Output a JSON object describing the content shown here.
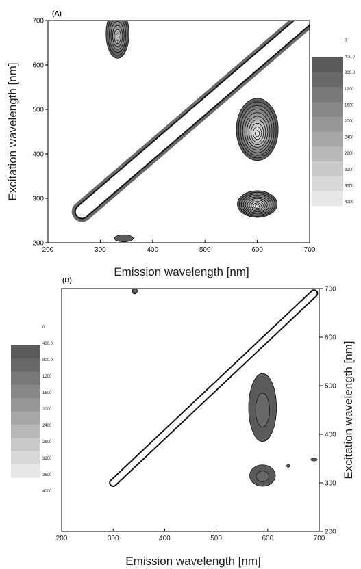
{
  "chart_data": [
    {
      "type": "contour",
      "panel_label": "(A)",
      "xlabel": "Emission wavelength [nm]",
      "ylabel": "Excitation wavelength [nm]",
      "xlim": [
        200,
        700
      ],
      "ylim": [
        200,
        700
      ],
      "xticks": [
        "200",
        "300",
        "400",
        "500",
        "600",
        "700"
      ],
      "yticks": [
        "200",
        "300",
        "400",
        "500",
        "600",
        "700"
      ],
      "ylabel_side": "left",
      "colorbar_side": "right",
      "colorbar_labels": [
        "0",
        "400.0",
        "800.0",
        "1200",
        "1600",
        "2000",
        "2400",
        "2800",
        "3200",
        "3600",
        "4000"
      ],
      "colorbar_colors": [
        "#5a5a5a",
        "#686868",
        "#787878",
        "#878787",
        "#979797",
        "#a7a7a7",
        "#b8b8b8",
        "#c9c9c9",
        "#d9d9d9",
        "#e8e8e8"
      ],
      "features": [
        {
          "name": "scatter-band",
          "from": [
            265,
            270
          ],
          "to": [
            690,
            700
          ],
          "fill_level": 0
        },
        {
          "name": "peak-1",
          "center": [
            600,
            455
          ],
          "rx": 40,
          "ry": 70,
          "levels": 10
        },
        {
          "name": "peak-2",
          "center": [
            600,
            287
          ],
          "rx": 38,
          "ry": 30,
          "levels": 10
        },
        {
          "name": "peak-3",
          "center": [
            333,
            670
          ],
          "rx": 22,
          "ry": 55,
          "levels": 7
        },
        {
          "name": "spot-1",
          "center": [
            345,
            210
          ],
          "rx": 18,
          "ry": 8,
          "levels": 1
        }
      ]
    },
    {
      "type": "contour",
      "panel_label": "(B)",
      "xlabel": "Emission wavelength [nm]",
      "ylabel": "Excitation wavelength [nm]",
      "xlim": [
        200,
        700
      ],
      "ylim": [
        200,
        700
      ],
      "xticks": [
        "200",
        "300",
        "400",
        "500",
        "600",
        "700"
      ],
      "yticks": [
        "200",
        "300",
        "400",
        "500",
        "600",
        "700"
      ],
      "ylabel_side": "right",
      "colorbar_side": "left",
      "colorbar_labels": [
        "0",
        "400.0",
        "800.0",
        "1200",
        "1600",
        "2000",
        "2400",
        "2800",
        "3200",
        "3600",
        "4000"
      ],
      "colorbar_colors": [
        "#5a5a5a",
        "#686868",
        "#787878",
        "#878787",
        "#979797",
        "#a7a7a7",
        "#b8b8b8",
        "#c9c9c9",
        "#d9d9d9",
        "#e8e8e8"
      ],
      "features": [
        {
          "name": "scatter-band",
          "from": [
            300,
            300
          ],
          "to": [
            690,
            690
          ],
          "fill_level": 0
        },
        {
          "name": "peak-1",
          "center": [
            590,
            455
          ],
          "rx": 27,
          "ry": 70,
          "levels": 2
        },
        {
          "name": "peak-2",
          "center": [
            590,
            315
          ],
          "rx": 25,
          "ry": 22,
          "levels": 2
        },
        {
          "name": "spot-1",
          "center": [
            342,
            695
          ],
          "rx": 5,
          "ry": 6,
          "levels": 1
        },
        {
          "name": "spot-2",
          "center": [
            640,
            335
          ],
          "rx": 3,
          "ry": 3,
          "levels": 1
        },
        {
          "name": "spot-3",
          "center": [
            690,
            348
          ],
          "rx": 6,
          "ry": 3,
          "levels": 1
        }
      ]
    }
  ]
}
